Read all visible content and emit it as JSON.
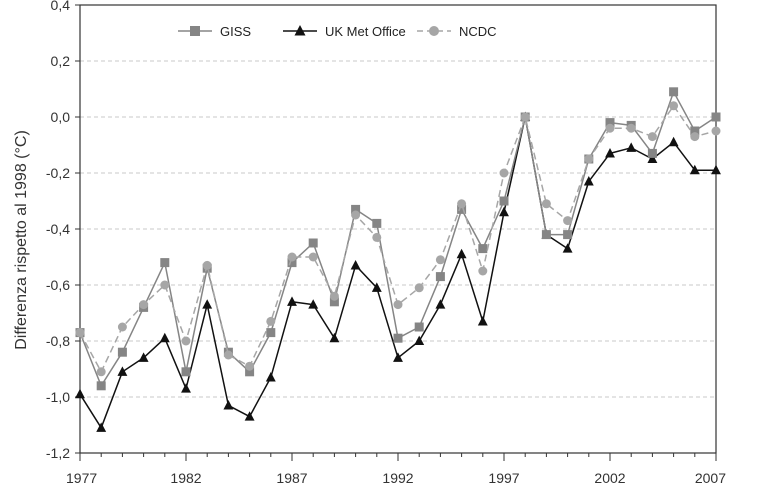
{
  "chart_data": {
    "type": "line",
    "title": "",
    "xlabel": "",
    "ylabel": "Differenza rispetto al 1998 (°C)",
    "xlim": [
      1977,
      2007
    ],
    "ylim": [
      -1.2,
      0.4
    ],
    "grid": {
      "horizontal": true,
      "vertical": false
    },
    "x_ticks": [
      {
        "value": 1977,
        "label": "1977"
      },
      {
        "value": 1982,
        "label": "1982"
      },
      {
        "value": 1987,
        "label": "1987"
      },
      {
        "value": 1992,
        "label": "1992"
      },
      {
        "value": 1997,
        "label": "1997"
      },
      {
        "value": 2002,
        "label": "2002"
      },
      {
        "value": 2007,
        "label": "2007"
      }
    ],
    "y_ticks": [
      {
        "value": 0.4,
        "label": "0,4"
      },
      {
        "value": 0.2,
        "label": "0,2"
      },
      {
        "value": 0.0,
        "label": "0,0"
      },
      {
        "value": -0.2,
        "label": "-0,2"
      },
      {
        "value": -0.4,
        "label": "-0,4"
      },
      {
        "value": -0.6,
        "label": "-0,6"
      },
      {
        "value": -0.8,
        "label": "-0,8"
      },
      {
        "value": -1.0,
        "label": "-1,0"
      },
      {
        "value": -1.2,
        "label": "-1,2"
      }
    ],
    "legend_position": "top",
    "x": [
      1977,
      1978,
      1979,
      1980,
      1981,
      1982,
      1983,
      1984,
      1985,
      1986,
      1987,
      1988,
      1989,
      1990,
      1991,
      1992,
      1993,
      1994,
      1995,
      1996,
      1997,
      1998,
      1999,
      2000,
      2001,
      2002,
      2003,
      2004,
      2005,
      2006,
      2007
    ],
    "series": [
      {
        "name": "GISS",
        "color": "#858585",
        "marker": "square",
        "dash": "solid",
        "values": [
          -0.77,
          -0.96,
          -0.84,
          -0.68,
          -0.52,
          -0.91,
          -0.54,
          -0.84,
          -0.91,
          -0.77,
          -0.52,
          -0.45,
          -0.66,
          -0.33,
          -0.38,
          -0.79,
          -0.75,
          -0.57,
          -0.33,
          -0.47,
          -0.3,
          0.0,
          -0.42,
          -0.42,
          -0.15,
          -0.02,
          -0.03,
          -0.13,
          0.09,
          -0.05,
          0.0
        ]
      },
      {
        "name": "UK Met Office",
        "color": "#111111",
        "marker": "triangle",
        "dash": "solid",
        "values": [
          -0.99,
          -1.11,
          -0.91,
          -0.86,
          -0.79,
          -0.97,
          -0.67,
          -1.03,
          -1.07,
          -0.93,
          -0.66,
          -0.67,
          -0.79,
          -0.53,
          -0.61,
          -0.86,
          -0.8,
          -0.67,
          -0.49,
          -0.73,
          -0.34,
          0.0,
          -0.42,
          -0.47,
          -0.23,
          -0.13,
          -0.11,
          -0.15,
          -0.09,
          -0.19,
          -0.19
        ]
      },
      {
        "name": "NCDC",
        "color": "#a6a6a6",
        "marker": "circle",
        "dash": "dashed",
        "values": [
          -0.77,
          -0.91,
          -0.75,
          -0.67,
          -0.6,
          -0.8,
          -0.53,
          -0.85,
          -0.89,
          -0.73,
          -0.5,
          -0.5,
          -0.64,
          -0.35,
          -0.43,
          -0.67,
          -0.61,
          -0.51,
          -0.31,
          -0.55,
          -0.2,
          0.0,
          -0.31,
          -0.37,
          -0.15,
          -0.04,
          -0.04,
          -0.07,
          0.04,
          -0.07,
          -0.05
        ]
      }
    ]
  }
}
